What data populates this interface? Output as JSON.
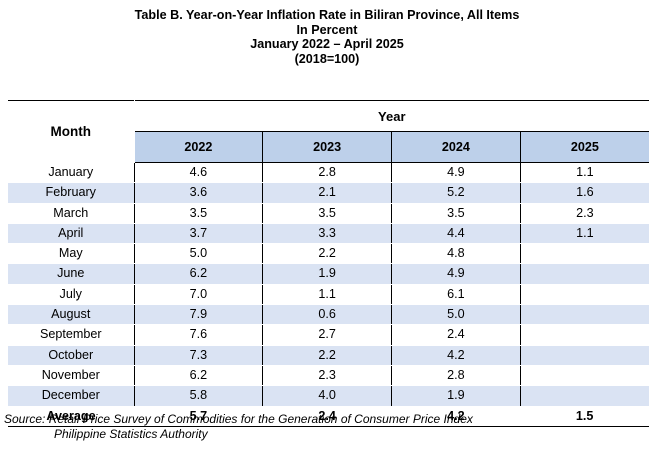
{
  "title": {
    "line1": "Table B. Year-on-Year Inflation Rate in Biliran Province, All Items",
    "line2": "In Percent",
    "line3": "January 2022 – April 2025",
    "line4": "(2018=100)"
  },
  "table": {
    "month_header": "Month",
    "year_header": "Year",
    "years": [
      "2022",
      "2023",
      "2024",
      "2025"
    ],
    "rows": [
      {
        "month": "January",
        "values": [
          "4.6",
          "2.8",
          "4.9",
          "1.1"
        ]
      },
      {
        "month": "February",
        "values": [
          "3.6",
          "2.1",
          "5.2",
          "1.6"
        ]
      },
      {
        "month": "March",
        "values": [
          "3.5",
          "3.5",
          "3.5",
          "2.3"
        ]
      },
      {
        "month": "April",
        "values": [
          "3.7",
          "3.3",
          "4.4",
          "1.1"
        ]
      },
      {
        "month": "May",
        "values": [
          "5.0",
          "2.2",
          "4.8",
          ""
        ]
      },
      {
        "month": "June",
        "values": [
          "6.2",
          "1.9",
          "4.9",
          ""
        ]
      },
      {
        "month": "July",
        "values": [
          "7.0",
          "1.1",
          "6.1",
          ""
        ]
      },
      {
        "month": "August",
        "values": [
          "7.9",
          "0.6",
          "5.0",
          ""
        ]
      },
      {
        "month": "September",
        "values": [
          "7.6",
          "2.7",
          "2.4",
          ""
        ]
      },
      {
        "month": "October",
        "values": [
          "7.3",
          "2.2",
          "4.2",
          ""
        ]
      },
      {
        "month": "November",
        "values": [
          "6.2",
          "2.3",
          "2.8",
          ""
        ]
      },
      {
        "month": "December",
        "values": [
          "5.8",
          "4.0",
          "1.9",
          ""
        ]
      }
    ],
    "average": {
      "label": "Average",
      "values": [
        "5.7",
        "2.4",
        "4.2",
        "1.5"
      ]
    }
  },
  "source": {
    "line1": "Source: Retail Price Survey of Commodities for the Generation of Consumer Price Index",
    "line2": "Philippine Statistics Authority"
  },
  "colors": {
    "header_fill": "#bdd0ea",
    "row_shade": "#dae3f3"
  }
}
